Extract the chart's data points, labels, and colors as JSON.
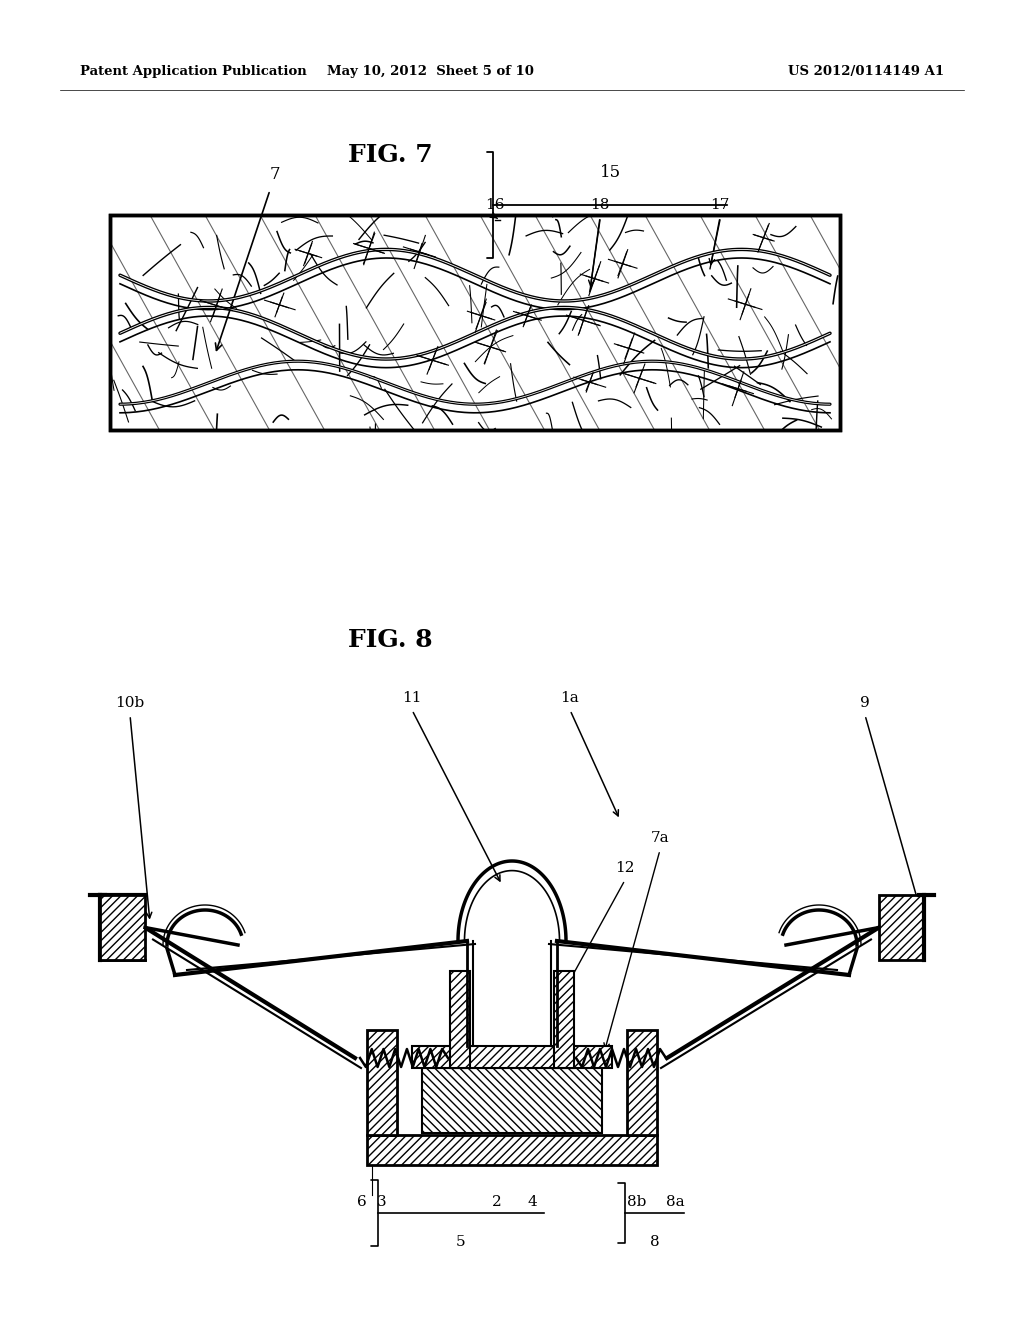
{
  "background_color": "#ffffff",
  "header_left": "Patent Application Publication",
  "header_center": "May 10, 2012  Sheet 5 of 10",
  "header_right": "US 2012/0114149 A1",
  "fig7_title": "FIG. 7",
  "fig8_title": "FIG. 8"
}
